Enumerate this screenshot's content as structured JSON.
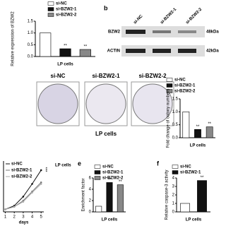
{
  "panel_labels": [
    "b",
    "e",
    "f"
  ],
  "blot": {
    "columns": [
      "si-NC",
      "si-BZW2-1",
      "si-BZW2-2"
    ],
    "rows": [
      {
        "label": "BZW2",
        "size": "48kDa"
      },
      {
        "label": "ACTIN",
        "size": "42kDa"
      }
    ]
  },
  "colony": {
    "columns": [
      "si-NC",
      "si-BZW2-1",
      "si-BZW2-2"
    ],
    "xlabel": "LP cells"
  },
  "chart_data": [
    {
      "type": "bar",
      "ylabel": "Relative expression of BZW2",
      "xlabel": "LP cells",
      "categories": [
        "si-NC",
        "si-BZW2-1",
        "si-BZW2-2"
      ],
      "values": [
        1.0,
        0.33,
        0.3
      ],
      "colors": [
        "#ffffff",
        "#111111",
        "#888888"
      ],
      "significance": [
        null,
        "**",
        "**"
      ],
      "ylim": [
        0,
        1.5
      ],
      "yticks": [
        {
          "value": 0,
          "label": "0.0"
        },
        0.5,
        {
          "value": 1,
          "label": "1.0"
        },
        1.5
      ]
    },
    {
      "type": "bar",
      "ylabel": "Fold change of colony numbers",
      "xlabel": "LP cells",
      "categories": [
        "si-NC",
        "si-BZW2-1",
        "si-BZW2-2"
      ],
      "values": [
        1.0,
        0.32,
        0.42
      ],
      "colors": [
        "#ffffff",
        "#111111",
        "#888888"
      ],
      "significance": [
        null,
        "**",
        "**"
      ],
      "ylim": [
        0,
        1.5
      ],
      "yticks": [
        {
          "value": 0,
          "label": "0.0"
        },
        0.5,
        {
          "value": 1,
          "label": "1.0"
        },
        1.5
      ]
    },
    {
      "type": "line",
      "xlabel": "days",
      "annotation": "LP cells",
      "significance": "***",
      "x": [
        1,
        2,
        3,
        4,
        5
      ],
      "xlim": [
        0.8,
        5.3
      ],
      "xticks": [
        1,
        2,
        3,
        4,
        5
      ],
      "ylim": [
        0,
        1
      ],
      "series": [
        {
          "name": "si-NC",
          "color": "#111111",
          "values": [
            0.05,
            0.12,
            0.3,
            0.55,
            0.82
          ]
        },
        {
          "name": "si-BZW2-1",
          "color": "#777777",
          "values": [
            0.05,
            0.1,
            0.22,
            0.4,
            0.58
          ]
        },
        {
          "name": "si-BZW2-2",
          "color": "#aaaaaa",
          "values": [
            0.05,
            0.1,
            0.2,
            0.38,
            0.55
          ]
        }
      ]
    },
    {
      "type": "bar",
      "ylabel": "Enrichment factor",
      "xlabel": "LP cells",
      "categories": [
        "si-NC",
        "si-BZW2-1",
        "si-BZW2-2"
      ],
      "values": [
        1.0,
        5.2,
        4.8
      ],
      "colors": [
        "#ffffff",
        "#111111",
        "#888888"
      ],
      "significance": [
        null,
        "**",
        "**"
      ],
      "ylim": [
        0,
        6
      ],
      "yticks": [
        0,
        2,
        4,
        6
      ]
    },
    {
      "type": "bar",
      "ylabel": "Relative caspase-3 activity",
      "xlabel": "LP cells",
      "categories": [
        "si-NC",
        "si-BZW2-1"
      ],
      "values": [
        1.0,
        3.7
      ],
      "colors": [
        "#ffffff",
        "#111111"
      ],
      "significance": [
        null,
        "**"
      ],
      "ylim": [
        0,
        4
      ],
      "yticks": [
        0,
        1,
        2,
        3,
        4
      ]
    }
  ]
}
